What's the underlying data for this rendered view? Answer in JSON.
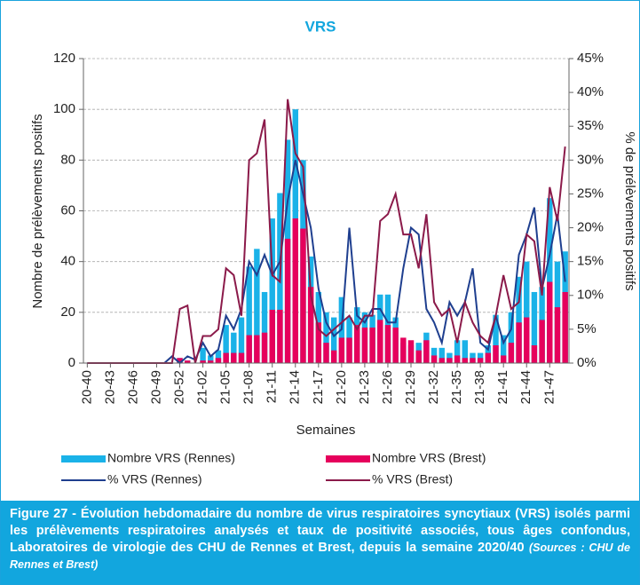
{
  "chart_data": {
    "type": "bar",
    "title": "VRS",
    "x_label": "Semaines",
    "y_label": "Nombre de prélèvements positifs",
    "y2_label": "% de prélèvements positifs",
    "categories": [
      "20-40",
      null,
      null,
      "20-43",
      null,
      null,
      "20-46",
      null,
      null,
      "20-49",
      null,
      null,
      "20-52",
      null,
      null,
      "21-02",
      null,
      null,
      "21-05",
      null,
      null,
      "21-08",
      null,
      null,
      "21-11",
      null,
      null,
      "21-14",
      null,
      null,
      "21-17",
      null,
      null,
      "21-20",
      null,
      null,
      "21-23",
      null,
      null,
      "21-26",
      null,
      null,
      "21-29",
      null,
      null,
      "21-32",
      null,
      null,
      "21-35",
      null,
      null,
      "21-38",
      null,
      null,
      "21-41",
      null,
      null,
      "21-44",
      null,
      null,
      "21-47",
      null,
      null
    ],
    "ylim": [
      0,
      120
    ],
    "yticks": [
      0,
      20,
      40,
      60,
      80,
      100,
      120
    ],
    "y2lim": [
      0,
      45
    ],
    "y2ticks": [
      {
        "value": 0,
        "label": "0%"
      },
      {
        "value": 5,
        "label": "5%"
      },
      {
        "value": 10,
        "label": "10%"
      },
      {
        "value": 15,
        "label": "15%"
      },
      {
        "value": 20,
        "label": "20%"
      },
      {
        "value": 25,
        "label": "25%"
      },
      {
        "value": 30,
        "label": "30%"
      },
      {
        "value": 35,
        "label": "35%"
      },
      {
        "value": 40,
        "label": "40%"
      },
      {
        "value": 45,
        "label": "45%"
      }
    ],
    "grid": true,
    "series": [
      {
        "name": "Nombre VRS (Rennes)",
        "type": "bar",
        "color": "#1ab2e8",
        "values": [
          0,
          0,
          0,
          0,
          0,
          0,
          0,
          0,
          0,
          0,
          0,
          0,
          2,
          1,
          0,
          6,
          3,
          5,
          15,
          12,
          18,
          38,
          45,
          28,
          57,
          67,
          88,
          100,
          80,
          42,
          28,
          20,
          18,
          26,
          18,
          22,
          20,
          19,
          27,
          27,
          18,
          8,
          7,
          8,
          12,
          6,
          6,
          4,
          9,
          9,
          4,
          4,
          7,
          19,
          11,
          20,
          34,
          40,
          28,
          30,
          65,
          40,
          44
        ]
      },
      {
        "name": "Nombre VRS (Brest)",
        "type": "bar",
        "color": "#e6005c",
        "values": [
          0,
          0,
          0,
          0,
          0,
          0,
          0,
          0,
          0,
          0,
          0,
          0,
          2,
          1,
          0,
          1,
          1,
          2,
          4,
          4,
          4,
          11,
          11,
          12,
          21,
          21,
          49,
          57,
          53,
          30,
          16,
          8,
          5,
          10,
          10,
          15,
          14,
          14,
          17,
          15,
          14,
          10,
          9,
          5,
          9,
          3,
          2,
          2,
          3,
          2,
          2,
          2,
          4,
          7,
          3,
          8,
          16,
          18,
          7,
          17,
          32,
          22,
          28
        ]
      },
      {
        "name": "% VRS (Rennes)",
        "type": "line",
        "axis": "y2",
        "color": "#1f3f8f",
        "values": [
          0,
          0,
          0,
          0,
          0,
          0,
          0,
          0,
          0,
          0,
          0,
          1,
          0,
          1,
          0.5,
          3,
          1,
          2,
          7,
          5,
          8,
          15,
          13,
          16,
          13,
          15,
          24,
          30,
          25,
          20,
          11,
          6,
          4,
          5,
          20,
          7,
          6,
          8,
          8,
          6,
          6,
          14,
          20,
          19,
          8,
          6,
          3,
          9,
          7,
          9,
          14,
          3,
          2,
          7,
          3,
          5,
          16,
          19,
          23,
          11,
          16,
          22,
          12
        ]
      },
      {
        "name": "% VRS (Brest)",
        "type": "line",
        "axis": "y2",
        "color": "#8b1a4a",
        "values": [
          0,
          0,
          0,
          0,
          0,
          0,
          0,
          0,
          0,
          0,
          0,
          0,
          8,
          8.5,
          0,
          4,
          4,
          5,
          14,
          13,
          7,
          30,
          31,
          36,
          13,
          12,
          39,
          31,
          29,
          10,
          5,
          4,
          5,
          6,
          7,
          5,
          7,
          7,
          21,
          22,
          25,
          19,
          19,
          14,
          22,
          9,
          7,
          8,
          3,
          9,
          6,
          4,
          3,
          7,
          13,
          8,
          9,
          19,
          18,
          10,
          26,
          21,
          32
        ]
      }
    ]
  },
  "caption": {
    "text": "Figure 27 - Évolution hebdomadaire du nombre de virus respiratoires syncytiaux (VRS) isolés parmi les prélèvements respiratoires analysés et taux de positivité associés, tous âges confondus, Laboratoires de virologie des CHU de Rennes et Brest, depuis la semaine 2020/40",
    "source": "(Sources : CHU de Rennes et Brest)"
  }
}
